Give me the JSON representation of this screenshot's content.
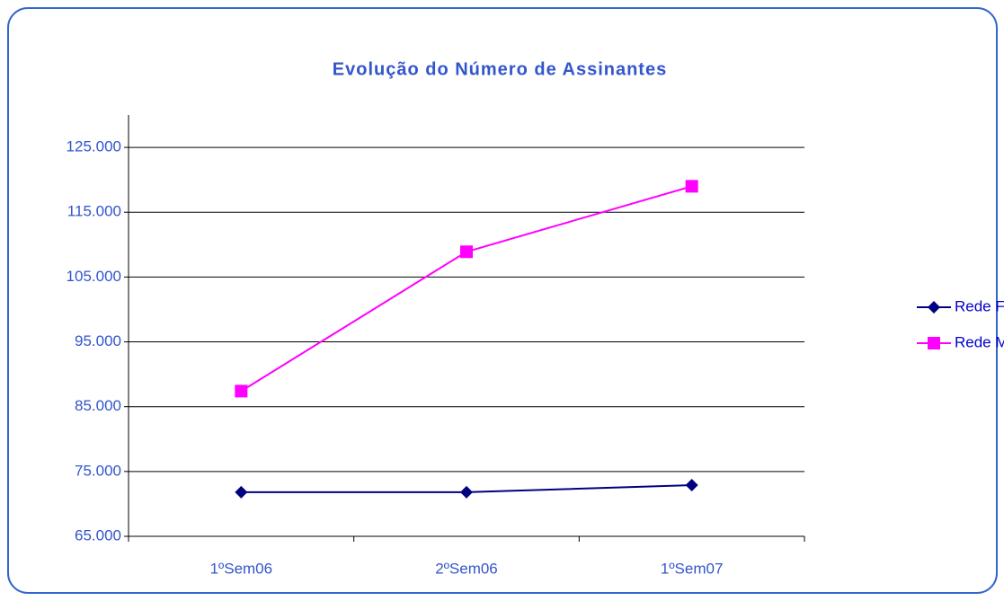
{
  "chart_data": {
    "type": "line",
    "title": "Evolução do Número de Assinantes",
    "categories": [
      "1ºSem06",
      "2ºSem06",
      "1ºSem07"
    ],
    "series": [
      {
        "name": "Rede Fixa",
        "color": "#000080",
        "marker": "diamond",
        "values": [
          71800,
          71800,
          72900
        ]
      },
      {
        "name": "Rede Móvel",
        "color": "#ff00ff",
        "marker": "square",
        "values": [
          87400,
          108900,
          119000
        ]
      }
    ],
    "ylim": [
      65000,
      130000
    ],
    "yticks": [
      {
        "value": 65000,
        "label": "65.000"
      },
      {
        "value": 75000,
        "label": "75.000"
      },
      {
        "value": 85000,
        "label": "85.000"
      },
      {
        "value": 95000,
        "label": "95.000"
      },
      {
        "value": 105000,
        "label": "105.000"
      },
      {
        "value": 115000,
        "label": "115.000"
      },
      {
        "value": 125000,
        "label": "125.000"
      }
    ],
    "grid": true,
    "legend": "right"
  }
}
